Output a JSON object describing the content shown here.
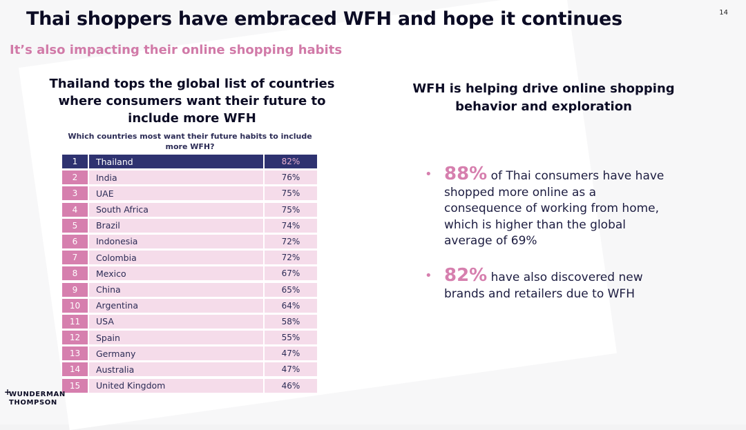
{
  "header": {
    "title": "Thai shoppers have embraced WFH and hope it continues",
    "subtitle": "It’s also impacting their online shopping habits",
    "page_number": "14"
  },
  "left": {
    "heading": "Thailand tops the global list of countries where consumers want their future to include more WFH",
    "question": "Which countries most want their future habits to include more WFH?",
    "rows": [
      {
        "rank": "1",
        "country": "Thailand",
        "pct": "82%"
      },
      {
        "rank": "2",
        "country": "India",
        "pct": "76%"
      },
      {
        "rank": "3",
        "country": "UAE",
        "pct": "75%"
      },
      {
        "rank": "4",
        "country": "South Africa",
        "pct": "75%"
      },
      {
        "rank": "5",
        "country": "Brazil",
        "pct": "74%"
      },
      {
        "rank": "6",
        "country": "Indonesia",
        "pct": "72%"
      },
      {
        "rank": "7",
        "country": "Colombia",
        "pct": "72%"
      },
      {
        "rank": "8",
        "country": "Mexico",
        "pct": "67%"
      },
      {
        "rank": "9",
        "country": "China",
        "pct": "65%"
      },
      {
        "rank": "10",
        "country": "Argentina",
        "pct": "64%"
      },
      {
        "rank": "11",
        "country": "USA",
        "pct": "58%"
      },
      {
        "rank": "12",
        "country": "Spain",
        "pct": "55%"
      },
      {
        "rank": "13",
        "country": "Germany",
        "pct": "47%"
      },
      {
        "rank": "14",
        "country": "Australia",
        "pct": "47%"
      },
      {
        "rank": "15",
        "country": "United Kingdom",
        "pct": "46%"
      }
    ]
  },
  "right": {
    "heading": "WFH is helping drive online shopping behavior and exploration",
    "bullets": [
      {
        "stat": "88%",
        "text": " of Thai consumers have have shopped more online as a consequence of working from home, which is higher than the global average of 69%"
      },
      {
        "stat": "82%",
        "text": " have also discovered new brands and retailers due to WFH"
      }
    ]
  },
  "logo": {
    "line1": "WUNDERMAN",
    "line2": "THOMPSON",
    "mark": "+"
  },
  "colors": {
    "accent": "#d67fae",
    "navy": "#2e3270",
    "row_bg": "#f5dcea"
  }
}
